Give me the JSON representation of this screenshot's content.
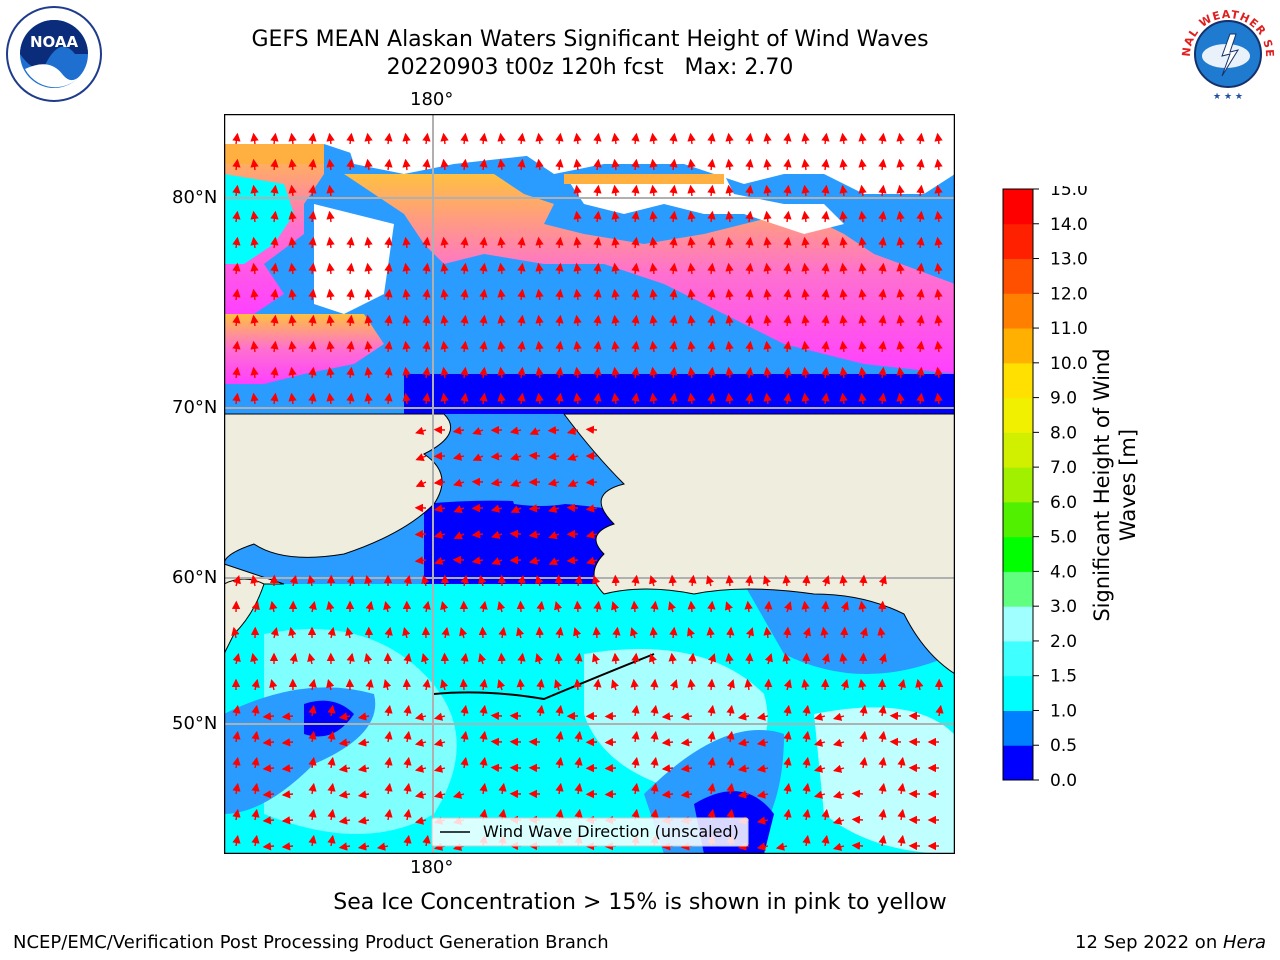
{
  "header": {
    "title_line1": "GEFS MEAN Alaskan Waters Significant Height of Wind Waves",
    "title_line2": "20220903 t00z 120h fcst   Max: 2.70"
  },
  "logos": {
    "left": {
      "icon": "noaa-logo-icon",
      "text": "NOAA"
    },
    "right": {
      "icon": "national-weather-service-logo-icon",
      "text": "NATIONAL WEATHER SERVICE"
    }
  },
  "map": {
    "top_lon_label": "180°",
    "bottom_lon_label": "180°",
    "lat_labels": [
      "80°N",
      "70°N",
      "60°N",
      "50°N"
    ],
    "legend_label": "Wind Wave Direction (unscaled)",
    "colors": {
      "land": "#efedde",
      "arrow": "#ff0000",
      "grid": "#b0b0b0"
    }
  },
  "colorbar": {
    "title": "Significant Height of Wind Waves [m]",
    "title_line1": "Significant Height of Wind",
    "title_line2": "Waves [m]",
    "ticks": [
      "15.0",
      "14.0",
      "13.0",
      "12.0",
      "11.0",
      "10.0",
      "9.0",
      "8.0",
      "7.0",
      "6.0",
      "5.0",
      "4.0",
      "3.0",
      "2.0",
      "1.5",
      "1.0",
      "0.5",
      "0.0"
    ],
    "colors": [
      "#0000ff",
      "#0080ff",
      "#00ffff",
      "#40ffff",
      "#a0ffff",
      "#60ff80",
      "#00ff00",
      "#50f000",
      "#a0f000",
      "#d0f000",
      "#f0f000",
      "#ffe000",
      "#ffb000",
      "#ff8000",
      "#ff5000",
      "#ff2000",
      "#ff0000"
    ]
  },
  "caption": "Sea Ice Concentration > 15% is shown in pink to yellow",
  "footer": {
    "left": "NCEP/EMC/Verification Post Processing Product Generation Branch",
    "right_date": "12 Sep 2022 on ",
    "right_host": "Hera"
  }
}
